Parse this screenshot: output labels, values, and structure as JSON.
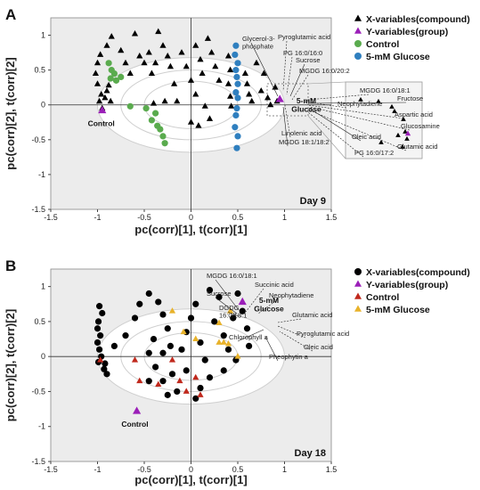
{
  "chart_data": [
    {
      "type": "scatter",
      "panel": "A",
      "day_label": "Day 9",
      "xlabel": "pc(corr)[1], t(corr)[1]",
      "ylabel": "pc(corr)[2], t(corr)[2]",
      "xlim": [
        -1.5,
        1.5
      ],
      "ylim": [
        -1.5,
        1.25
      ],
      "xticks": [
        "-1.5",
        "-1",
        "-0.5",
        "0",
        "0.5",
        "1",
        "1.5"
      ],
      "yticks": [
        "1",
        "0.5",
        "0",
        "-0.5",
        "-1",
        "-1.5"
      ],
      "legend": {
        "position": "right",
        "items": [
          {
            "label": "X-variables(compound)",
            "marker": "triangle",
            "color": "#000000"
          },
          {
            "label": "Y-variables(group)",
            "marker": "triangle",
            "color": "#9b1fb8"
          },
          {
            "label": "Control",
            "marker": "circle",
            "color": "#5aab4e"
          },
          {
            "label": "5-mM Glucose",
            "marker": "circle",
            "color": "#2f7fbf"
          }
        ]
      },
      "group_labels": [
        {
          "text": "Control",
          "x": -0.96,
          "y": -0.2
        },
        {
          "text": "5-mM\nGlucose",
          "x": 1.0,
          "y": 0.02
        }
      ],
      "annotations": [
        "Glycerol-3-\nphosphate",
        "Pyroglutamic acid",
        "PG 16:0/16:0",
        "Sucrose",
        "MGDG 16:0/20:2",
        "Linolenic acid",
        "MGDG 18:1/18:2",
        "MGDG 16:0/18:1",
        "Neophytadiene",
        "Fructose",
        "Aspartic acid",
        "Glucosamine",
        "Oleic acid",
        "Glutamic acid",
        "PG 16:0/17:2"
      ],
      "series": [
        {
          "name": "X-variables(compound)",
          "marker": "triangle",
          "color": "#000000",
          "points": [
            [
              -0.35,
              1.05
            ],
            [
              -0.6,
              1.02
            ],
            [
              -0.85,
              0.98
            ],
            [
              -0.9,
              0.85
            ],
            [
              -0.97,
              0.72
            ],
            [
              -1.0,
              0.6
            ],
            [
              -1.02,
              0.45
            ],
            [
              -1.0,
              0.3
            ],
            [
              -0.96,
              0.15
            ],
            [
              -0.98,
              0.05
            ],
            [
              -0.95,
              -0.05
            ],
            [
              -0.92,
              0.1
            ],
            [
              -0.88,
              0.28
            ],
            [
              -0.9,
              0.2
            ],
            [
              -0.86,
              0.05
            ],
            [
              -0.75,
              0.78
            ],
            [
              -0.7,
              0.6
            ],
            [
              -0.65,
              0.45
            ],
            [
              -0.55,
              0.7
            ],
            [
              -0.5,
              0.6
            ],
            [
              -0.45,
              0.75
            ],
            [
              -0.42,
              0.45
            ],
            [
              -0.38,
              0.6
            ],
            [
              -0.3,
              0.85
            ],
            [
              -0.25,
              0.7
            ],
            [
              -0.22,
              0.55
            ],
            [
              -0.18,
              0.3
            ],
            [
              -0.15,
              0.05
            ],
            [
              -0.1,
              0.75
            ],
            [
              -0.05,
              0.55
            ],
            [
              0.0,
              0.35
            ],
            [
              0.05,
              0.85
            ],
            [
              0.1,
              0.65
            ],
            [
              0.12,
              0.45
            ],
            [
              0.18,
              0.95
            ],
            [
              0.22,
              0.75
            ],
            [
              0.26,
              0.55
            ],
            [
              0.3,
              0.35
            ],
            [
              -0.28,
              0.05
            ],
            [
              -0.4,
              0.02
            ],
            [
              0.05,
              0.15
            ],
            [
              0.15,
              -0.02
            ],
            [
              0.2,
              -0.2
            ],
            [
              0.08,
              -0.3
            ],
            [
              0.0,
              -0.25
            ],
            [
              0.4,
              0.7
            ],
            [
              0.42,
              0.5
            ],
            [
              0.4,
              0.3
            ],
            [
              0.42,
              0.12
            ],
            [
              0.43,
              -0.02
            ],
            [
              0.58,
              0.45
            ],
            [
              0.6,
              0.3
            ],
            [
              0.62,
              0.15
            ],
            [
              0.65,
              0.05
            ],
            [
              0.7,
              0.6
            ],
            [
              0.75,
              0.2
            ],
            [
              0.78,
              0.45
            ],
            [
              0.82,
              0.1
            ],
            [
              0.9,
              0.25
            ],
            [
              0.85,
              0.0
            ],
            [
              0.92,
              0.05
            ]
          ]
        },
        {
          "name": "Y-variables(group)",
          "marker": "triangle",
          "color": "#9b1fb8",
          "points": [
            [
              -0.95,
              -0.08
            ],
            [
              0.95,
              0.08
            ]
          ]
        },
        {
          "name": "Control",
          "marker": "circle",
          "color": "#5aab4e",
          "points": [
            [
              -0.88,
              0.6
            ],
            [
              -0.85,
              0.5
            ],
            [
              -0.82,
              0.45
            ],
            [
              -0.86,
              0.38
            ],
            [
              -0.8,
              0.35
            ],
            [
              -0.75,
              0.4
            ],
            [
              -0.65,
              -0.02
            ],
            [
              -0.48,
              -0.05
            ],
            [
              -0.42,
              -0.22
            ],
            [
              -0.38,
              -0.12
            ],
            [
              -0.36,
              -0.3
            ],
            [
              -0.33,
              -0.35
            ],
            [
              -0.3,
              -0.45
            ],
            [
              -0.28,
              -0.55
            ]
          ]
        },
        {
          "name": "5-mM Glucose",
          "marker": "circle",
          "color": "#2f7fbf",
          "points": [
            [
              0.48,
              0.85
            ],
            [
              0.47,
              0.72
            ],
            [
              0.5,
              0.6
            ],
            [
              0.48,
              0.5
            ],
            [
              0.49,
              0.4
            ],
            [
              0.5,
              0.3
            ],
            [
              0.48,
              0.18
            ],
            [
              0.5,
              0.1
            ],
            [
              0.49,
              -0.05
            ],
            [
              0.48,
              -0.15
            ],
            [
              0.47,
              -0.32
            ],
            [
              0.5,
              -0.45
            ],
            [
              0.49,
              -0.62
            ]
          ]
        }
      ]
    },
    {
      "type": "scatter",
      "panel": "B",
      "day_label": "Day 18",
      "xlabel": "pc(corr)[1], t(corr)[1]",
      "ylabel": "pc(corr)[2], t(corr)[2]",
      "xlim": [
        -1.5,
        1.5
      ],
      "ylim": [
        -1.5,
        1.25
      ],
      "xticks": [
        "-1.5",
        "-1",
        "-0.5",
        "0",
        "0.5",
        "1",
        "1.5"
      ],
      "yticks": [
        "1",
        "0.5",
        "0",
        "-0.5",
        "-1",
        "-1.5"
      ],
      "legend": {
        "position": "right",
        "items": [
          {
            "label": "X-variables(compound)",
            "marker": "circle",
            "color": "#000000"
          },
          {
            "label": "Y-variables(group)",
            "marker": "triangle",
            "color": "#9b1fb8"
          },
          {
            "label": "Control",
            "marker": "triangle",
            "color": "#c0281c"
          },
          {
            "label": "5-mM Glucose",
            "marker": "triangle",
            "color": "#e8b22a"
          }
        ]
      },
      "group_labels": [
        {
          "text": "Control",
          "x": -0.6,
          "y": -0.9
        },
        {
          "text": "5-mM\nGlucose",
          "x": 0.55,
          "y": 0.85
        }
      ],
      "annotations": [
        "MGDG 16:0/18:1",
        "Succinic acid",
        "Neophytadiene",
        "Sucrose",
        "DGDG\n16:0/18:1",
        "Glutamic acid",
        "Chlorophyll a",
        "Pyroglutamic acid",
        "Oleic acid",
        "Pheophytin a"
      ],
      "series": [
        {
          "name": "X-variables(compound)",
          "marker": "circle",
          "color": "#000000",
          "points": [
            [
              -0.98,
              0.72
            ],
            [
              -0.95,
              0.62
            ],
            [
              -0.99,
              0.5
            ],
            [
              -1.0,
              0.4
            ],
            [
              -0.97,
              0.3
            ],
            [
              -1.0,
              0.2
            ],
            [
              -0.98,
              0.1
            ],
            [
              -0.96,
              0.0
            ],
            [
              -0.99,
              -0.08
            ],
            [
              -0.93,
              -0.18
            ],
            [
              -0.9,
              -0.25
            ],
            [
              -0.92,
              -0.1
            ],
            [
              -0.82,
              0.15
            ],
            [
              -0.7,
              0.3
            ],
            [
              -0.6,
              0.55
            ],
            [
              -0.55,
              0.75
            ],
            [
              -0.45,
              0.9
            ],
            [
              -0.35,
              0.78
            ],
            [
              -0.3,
              0.6
            ],
            [
              -0.25,
              0.4
            ],
            [
              -0.4,
              0.25
            ],
            [
              -0.45,
              0.05
            ],
            [
              -0.38,
              -0.15
            ],
            [
              -0.3,
              -0.35
            ],
            [
              -0.2,
              -0.25
            ],
            [
              -0.15,
              -0.5
            ],
            [
              -0.1,
              0.1
            ],
            [
              -0.05,
              0.35
            ],
            [
              0.0,
              0.55
            ],
            [
              0.05,
              0.75
            ],
            [
              0.1,
              0.2
            ],
            [
              0.15,
              -0.05
            ],
            [
              0.2,
              -0.3
            ],
            [
              0.1,
              -0.45
            ],
            [
              0.05,
              -0.6
            ],
            [
              -0.22,
              0.15
            ],
            [
              -0.3,
              0.05
            ],
            [
              0.25,
              0.5
            ],
            [
              0.3,
              0.85
            ],
            [
              0.35,
              0.3
            ],
            [
              0.4,
              0.1
            ],
            [
              0.45,
              0.55
            ],
            [
              0.5,
              0.9
            ],
            [
              0.55,
              0.65
            ],
            [
              0.6,
              0.4
            ],
            [
              0.48,
              -0.05
            ],
            [
              0.35,
              -0.2
            ],
            [
              0.62,
              0.15
            ],
            [
              0.2,
              0.95
            ],
            [
              -0.05,
              -0.2
            ],
            [
              -0.25,
              -0.55
            ],
            [
              -0.45,
              -0.35
            ]
          ]
        },
        {
          "name": "Y-variables(group)",
          "marker": "triangle",
          "color": "#9b1fb8",
          "points": [
            [
              -0.58,
              -0.78
            ],
            [
              0.55,
              0.78
            ]
          ]
        },
        {
          "name": "Control",
          "marker": "triangle",
          "color": "#c0281c",
          "points": [
            [
              -0.97,
              -0.05
            ],
            [
              -0.6,
              -0.05
            ],
            [
              -0.55,
              -0.35
            ],
            [
              -0.35,
              -0.4
            ],
            [
              -0.2,
              -0.05
            ],
            [
              -0.12,
              -0.35
            ],
            [
              -0.05,
              -0.5
            ],
            [
              0.05,
              -0.3
            ],
            [
              0.1,
              -0.55
            ]
          ]
        },
        {
          "name": "5-mM Glucose",
          "marker": "triangle",
          "color": "#e8b22a",
          "points": [
            [
              -0.2,
              0.65
            ],
            [
              -0.08,
              0.35
            ],
            [
              0.05,
              0.25
            ],
            [
              0.3,
              0.2
            ],
            [
              0.35,
              0.2
            ],
            [
              0.4,
              0.18
            ],
            [
              0.5,
              0.0
            ],
            [
              0.3,
              0.48
            ],
            [
              0.42,
              0.65
            ]
          ]
        }
      ]
    }
  ]
}
